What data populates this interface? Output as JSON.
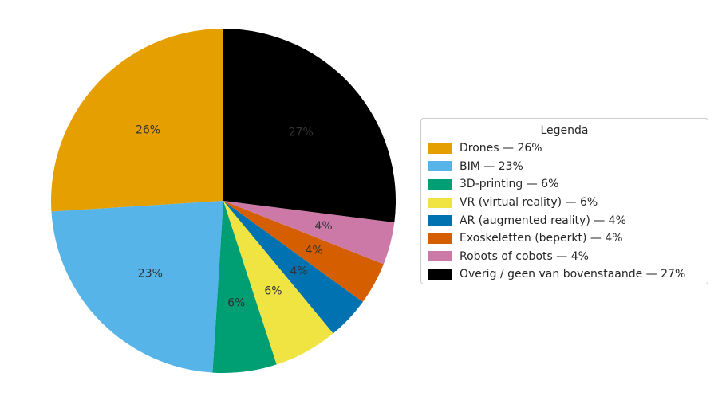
{
  "chart_data": {
    "type": "pie",
    "legend": {
      "title": "Legenda",
      "position": "right"
    },
    "categories": [
      "Drones",
      "BIM",
      "3D-printing",
      "VR (virtual reality)",
      "AR (augmented reality)",
      "Exoskeletten (beperkt)",
      "Robots of cobots",
      "Overig / geen van bovenstaande"
    ],
    "values": [
      26,
      23,
      6,
      6,
      4,
      4,
      4,
      27
    ],
    "colors": [
      "#E69F00",
      "#56B4E9",
      "#009E73",
      "#F0E442",
      "#0072B2",
      "#D55E00",
      "#CC79A7",
      "#000000"
    ],
    "slice_labels": [
      "26%",
      "23%",
      "6%",
      "6%",
      "4%",
      "4%",
      "4%",
      "27%"
    ],
    "legend_labels": [
      "Drones — 26%",
      "BIM — 23%",
      "3D-printing — 6%",
      "VR (virtual reality) — 6%",
      "AR (augmented reality) — 4%",
      "Exoskeletten (beperkt) — 4%",
      "Robots of cobots — 4%",
      "Overig / geen van bovenstaande — 27%"
    ],
    "start_angle": 90,
    "direction": "counterclockwise",
    "pct_distance": 0.6,
    "pct_label_color": "#333333",
    "background": "#ffffff"
  }
}
